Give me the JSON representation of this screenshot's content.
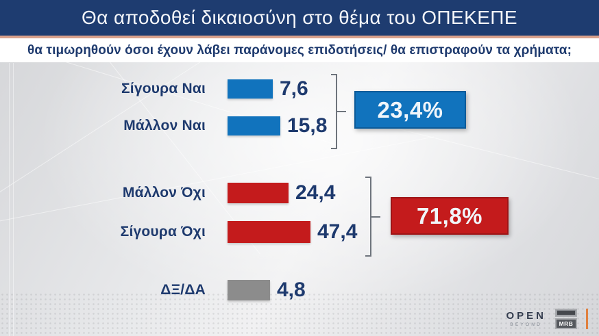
{
  "header": {
    "title": "Θα αποδοθεί δικαιοσύνη στο θέμα του ΟΠΕΚΕΠΕ",
    "subtitle": "θα τιμωρηθούν όσοι έχουν λάβει παράνομες επιδοτήσεις/ θα επιστραφούν τα χρήματα;"
  },
  "chart_data": {
    "type": "bar",
    "orientation": "horizontal",
    "title": "Θα αποδοθεί δικαιοσύνη στο θέμα του ΟΠΕΚΕΠΕ",
    "question": "θα τιμωρηθούν όσοι έχουν λάβει παράνομες επιδοτήσεις/ θα επιστραφούν τα χρήματα;",
    "categories": [
      "Σίγουρα Ναι",
      "Μάλλον Ναι",
      "Μάλλον Όχι",
      "Σίγουρα Όχι",
      "ΔΞ/ΔΑ"
    ],
    "values": [
      7.6,
      15.8,
      24.4,
      47.4,
      4.8
    ],
    "value_labels": [
      "7,6",
      "15,8",
      "24,4",
      "47,4",
      "4,8"
    ],
    "unit": "%",
    "bar_colors": [
      "#1173bd",
      "#1173bd",
      "#c41b1c",
      "#c41b1c",
      "#8c8c8c"
    ],
    "groups": [
      {
        "label": "23,4%",
        "value": 23.4,
        "members": [
          "Σίγουρα Ναι",
          "Μάλλον Ναι"
        ],
        "color": "#1173bd",
        "border": "#0c5b99"
      },
      {
        "label": "71,8%",
        "value": 71.8,
        "members": [
          "Μάλλον Όχι",
          "Σίγουρα Όχι"
        ],
        "color": "#c41b1c",
        "border": "#9e1416"
      }
    ],
    "legend": null,
    "grid": false
  },
  "colors": {
    "header_bg": "#1e3c70",
    "accent_line": "#d9a18c",
    "text_navy": "#1e3a6e",
    "bracket": "#6e747c",
    "footer_orange": "#e0803f"
  },
  "footer": {
    "open_text": "OPEN",
    "open_subtext": "BEYOND",
    "mrb_text": "MRB"
  }
}
